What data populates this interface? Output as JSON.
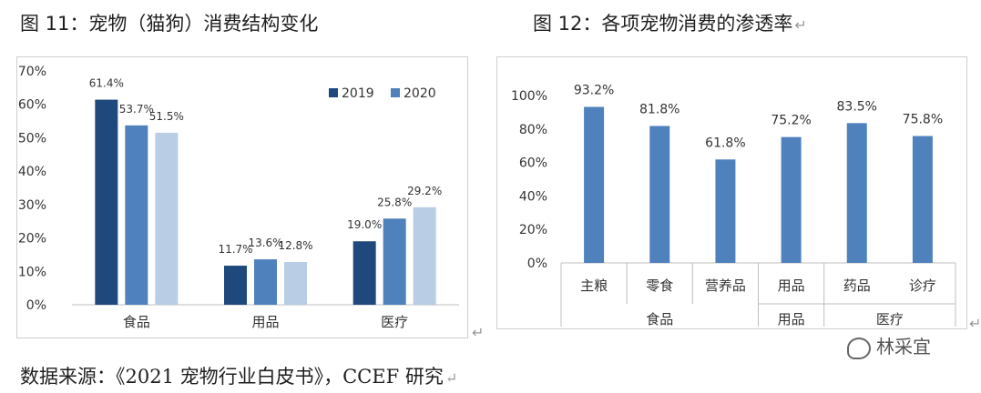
{
  "figure11": {
    "title": "图 11：宠物（猫狗）消费结构变化"
  },
  "figure12": {
    "title": "图 12：各项宠物消费的渗透率"
  },
  "return_mark": "↵",
  "source_note": "数据来源：《2021 宠物行业白皮书》，CCEF 研究",
  "watermark": "林采宜",
  "chart_data": [
    {
      "type": "bar",
      "categories": [
        "食品",
        "用品",
        "医疗"
      ],
      "series": [
        {
          "name": "2019",
          "values": [
            61.4,
            11.7,
            19.0
          ],
          "color": "#1f497d"
        },
        {
          "name": "2020",
          "values": [
            53.7,
            13.6,
            25.8
          ],
          "color": "#4f81bd"
        },
        {
          "name": "",
          "values": [
            51.5,
            12.8,
            29.2
          ],
          "color": "#b9cde5"
        }
      ],
      "data_labels": [
        [
          "61.4%",
          "11.7%",
          "19.0%"
        ],
        [
          "53.7%",
          "13.6%",
          "25.8%"
        ],
        [
          "51.5%",
          "12.8%",
          "29.2%"
        ]
      ],
      "y_ticks": [
        "0%",
        "10%",
        "20%",
        "30%",
        "40%",
        "50%",
        "60%",
        "70%"
      ],
      "ylim": [
        0,
        70
      ],
      "legend_position": "top-right",
      "grid": false
    },
    {
      "type": "bar",
      "categories": [
        "主粮",
        "零食",
        "营养品",
        "用品",
        "药品",
        "诊疗"
      ],
      "group_labels": [
        "食品",
        "用品",
        "医疗"
      ],
      "values": [
        93.2,
        81.8,
        61.8,
        75.2,
        83.5,
        75.8
      ],
      "data_labels": [
        "93.2%",
        "81.8%",
        "61.8%",
        "75.2%",
        "83.5%",
        "75.8%"
      ],
      "color": "#4f81bd",
      "y_ticks": [
        "0%",
        "20%",
        "40%",
        "60%",
        "80%",
        "100%"
      ],
      "ylim": [
        0,
        100
      ],
      "grid": false
    }
  ]
}
